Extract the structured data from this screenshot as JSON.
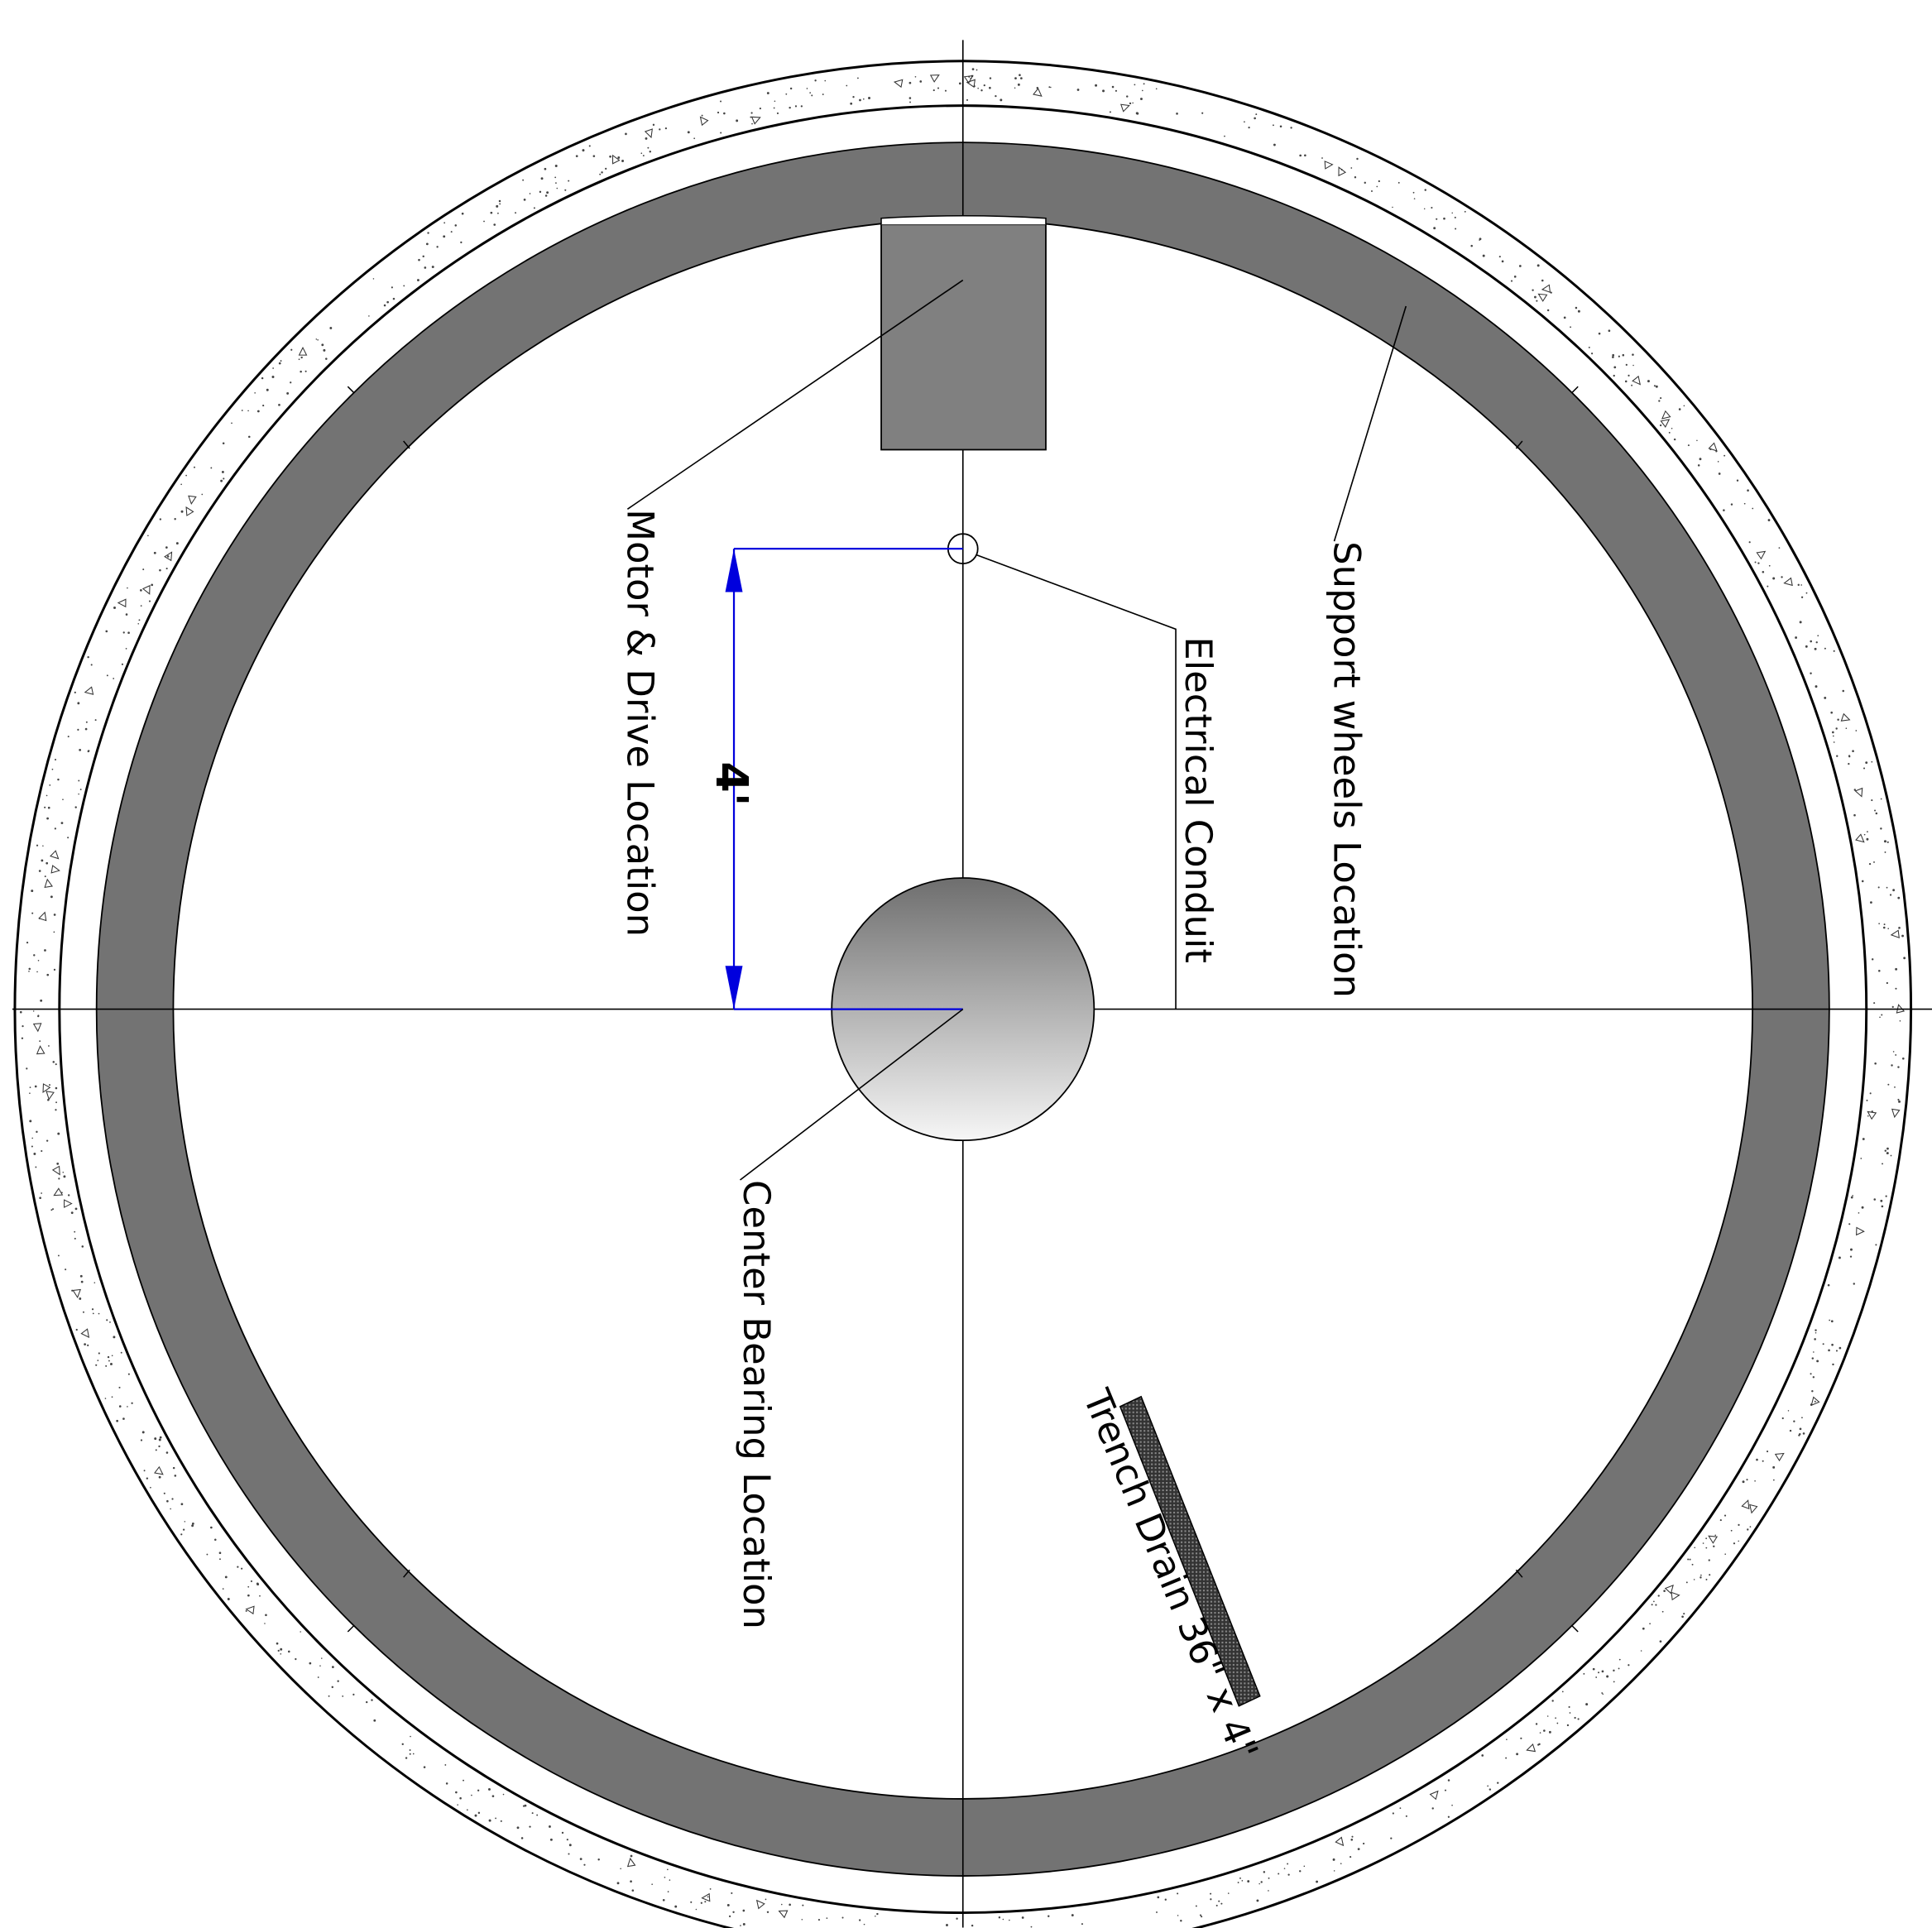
{
  "diagram": {
    "labels": {
      "motor": "Motor & Drive Location",
      "support": "Support wheels Location",
      "electrical": "Electrical Conduit",
      "center": "Center Bearing Location",
      "trench": "Trench Drain 36\" x 4\"",
      "dimension": "4'"
    },
    "colors": {
      "track": "#737373",
      "motor_box": "#808080",
      "dimension": "#0000dd",
      "line": "#000000",
      "concrete": "#ffffff"
    }
  }
}
